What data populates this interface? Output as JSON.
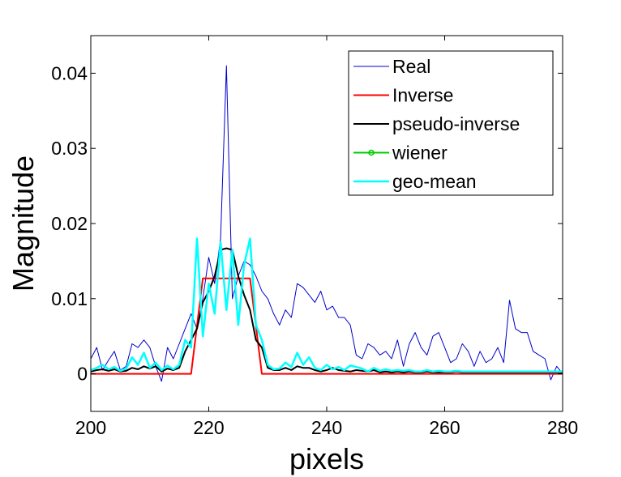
{
  "chart_data": {
    "type": "line",
    "xlabel": "pixels",
    "ylabel": "Magnitude",
    "xlim": [
      200,
      280
    ],
    "ylim": [
      -0.005,
      0.045
    ],
    "xticks": [
      "200",
      "220",
      "240",
      "260",
      "280"
    ],
    "yticks": [
      "0",
      "0.01",
      "0.02",
      "0.03",
      "0.04"
    ],
    "grid": false,
    "legend_position": "top-right",
    "series": [
      {
        "name": "Real",
        "color": "#0000cc",
        "width": 1,
        "marker": "none",
        "x": [
          200,
          201,
          202,
          203,
          204,
          205,
          206,
          207,
          208,
          209,
          210,
          211,
          212,
          213,
          214,
          215,
          216,
          217,
          218,
          219,
          220,
          221,
          222,
          223,
          224,
          225,
          226,
          227,
          228,
          229,
          230,
          231,
          232,
          233,
          234,
          235,
          236,
          237,
          238,
          239,
          240,
          241,
          242,
          243,
          244,
          245,
          246,
          247,
          248,
          249,
          250,
          251,
          252,
          253,
          254,
          255,
          256,
          257,
          258,
          259,
          260,
          261,
          262,
          263,
          264,
          265,
          266,
          267,
          268,
          269,
          270,
          271,
          272,
          273,
          274,
          275,
          276,
          277,
          278,
          279,
          280
        ],
        "y": [
          0.002,
          0.0035,
          0.0005,
          0.0018,
          0.003,
          0.0005,
          0.001,
          0.004,
          0.0035,
          0.0045,
          0.0035,
          0.001,
          -0.001,
          0.0035,
          0.002,
          0.004,
          0.006,
          0.008,
          0.006,
          0.01,
          0.0155,
          0.012,
          0.018,
          0.041,
          0.01,
          0.013,
          0.015,
          0.0145,
          0.013,
          0.011,
          0.01,
          0.008,
          0.0065,
          0.0085,
          0.0075,
          0.012,
          0.0115,
          0.0105,
          0.0095,
          0.011,
          0.0085,
          0.009,
          0.0075,
          0.0075,
          0.0065,
          0.0025,
          0.002,
          0.004,
          0.0035,
          0.0025,
          0.003,
          0.002,
          0.0045,
          0.001,
          0.004,
          0.0055,
          0.0035,
          0.0025,
          0.005,
          0.0055,
          0.0035,
          0.0015,
          0.002,
          0.004,
          0.003,
          0.001,
          0.003,
          0.0015,
          0.002,
          0.0035,
          0.0015,
          0.0098,
          0.006,
          0.0055,
          0.0055,
          0.003,
          0.0025,
          0.002,
          -0.0008,
          0.001,
          0.0
        ]
      },
      {
        "name": "Inverse",
        "color": "#ff0000",
        "width": 2,
        "marker": "none",
        "x": [
          200,
          217,
          219,
          227,
          229,
          280
        ],
        "y": [
          0,
          0,
          0.0127,
          0.0127,
          0,
          0
        ]
      },
      {
        "name": "pseudo-inverse",
        "color": "#000000",
        "width": 2,
        "marker": "none",
        "x": [
          200,
          201,
          202,
          203,
          204,
          205,
          206,
          207,
          208,
          209,
          210,
          211,
          212,
          213,
          214,
          215,
          216,
          217,
          218,
          219,
          220,
          221,
          222,
          223,
          224,
          225,
          226,
          227,
          228,
          229,
          230,
          231,
          232,
          233,
          234,
          235,
          236,
          237,
          238,
          239,
          240,
          241,
          242,
          243,
          244,
          245,
          246,
          247,
          248,
          249,
          250,
          251,
          252,
          253,
          254,
          255,
          256,
          257,
          258,
          259,
          260,
          261,
          262,
          263,
          264,
          265,
          266,
          267,
          268,
          269,
          270,
          271,
          272,
          273,
          274,
          275,
          276,
          277,
          278,
          279,
          280
        ],
        "y": [
          0.0003,
          0.0005,
          0.0006,
          0.0004,
          0.0006,
          0.0003,
          0.0004,
          0.0008,
          0.0006,
          0.001,
          0.0007,
          0.001,
          0.0003,
          0.0007,
          0.0005,
          0.0008,
          0.003,
          0.0045,
          0.006,
          0.0095,
          0.011,
          0.013,
          0.0165,
          0.0167,
          0.0165,
          0.013,
          0.0105,
          0.0085,
          0.0045,
          0.0035,
          0.0008,
          0.0005,
          0.0005,
          0.0008,
          0.0005,
          0.001,
          0.0008,
          0.0008,
          0.0005,
          0.0003,
          0.0005,
          0.0008,
          0.0005,
          0.0004,
          0.0003,
          0.0005,
          0.0004,
          0.0003,
          0.0005,
          0.0002,
          0.0003,
          0.0002,
          0.0003,
          0.0002,
          0.0003,
          0.0002,
          0.0002,
          0.0003,
          0.0002,
          0.0002,
          0.0002,
          0.0002,
          0.0003,
          0.0002,
          0.0002,
          0.0002,
          0.0002,
          0.0002,
          0.0002,
          0.0002,
          0.0002,
          0.0002,
          0.0002,
          0.0002,
          0.0002,
          0.0002,
          0.0002,
          0.0002,
          0.0002,
          0.0002,
          0.0002
        ]
      },
      {
        "name": "wiener",
        "color": "#00cc00",
        "width": 2,
        "marker": "circle",
        "x": [],
        "y": []
      },
      {
        "name": "geo-mean",
        "color": "#00ffff",
        "width": 2.5,
        "marker": "none",
        "x": [
          200,
          201,
          202,
          203,
          204,
          205,
          206,
          207,
          208,
          209,
          210,
          211,
          212,
          213,
          214,
          215,
          216,
          217,
          218,
          219,
          220,
          221,
          222,
          223,
          224,
          225,
          226,
          227,
          228,
          229,
          230,
          231,
          232,
          233,
          234,
          235,
          236,
          237,
          238,
          239,
          240,
          241,
          242,
          243,
          244,
          245,
          246,
          247,
          248,
          249,
          250,
          251,
          252,
          253,
          254,
          255,
          256,
          257,
          258,
          259,
          260,
          261,
          262,
          263,
          264,
          265,
          266,
          267,
          268,
          269,
          270,
          271,
          272,
          273,
          274,
          275,
          276,
          277,
          278,
          279,
          280
        ],
        "y": [
          0.0005,
          0.0008,
          0.0012,
          0.0006,
          0.0009,
          0.0004,
          0.0007,
          0.0022,
          0.0012,
          0.0028,
          0.0008,
          0.0015,
          0.0005,
          0.0011,
          0.0006,
          0.0012,
          0.0045,
          0.0035,
          0.018,
          0.005,
          0.012,
          0.008,
          0.0175,
          0.0085,
          0.0165,
          0.0065,
          0.0145,
          0.018,
          0.0065,
          0.0045,
          0.0012,
          0.0006,
          0.0007,
          0.0015,
          0.0009,
          0.0028,
          0.0012,
          0.0022,
          0.0008,
          0.0005,
          0.0012,
          0.0006,
          0.0009,
          0.0005,
          0.0011,
          0.0009,
          0.0007,
          0.0003,
          0.0008,
          0.0004,
          0.0006,
          0.0004,
          0.0005,
          0.0004,
          0.0005,
          0.0003,
          0.0003,
          0.0005,
          0.0003,
          0.0004,
          0.0003,
          0.0003,
          0.0004,
          0.0003,
          0.0003,
          0.0003,
          0.0003,
          0.0003,
          0.0003,
          0.0003,
          0.0003,
          0.0003,
          0.0003,
          0.0003,
          0.0003,
          0.0003,
          0.0003,
          0.0003,
          0.0003,
          0.0003,
          0.0003
        ]
      }
    ]
  }
}
